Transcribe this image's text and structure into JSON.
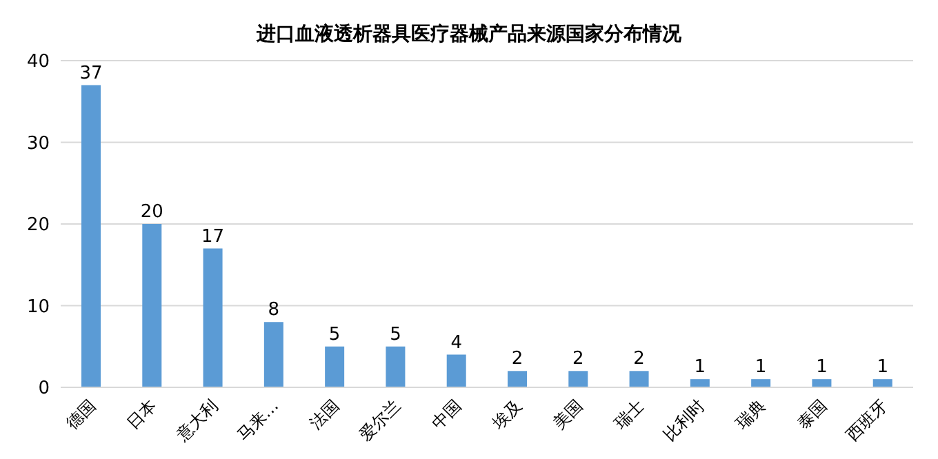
{
  "chart_data": {
    "type": "bar",
    "title": "进口血液透析器具医疗器械产品来源国家分布情况",
    "categories": [
      "德国",
      "日本",
      "意大利",
      "马来…",
      "法国",
      "爱尔兰",
      "中国",
      "埃及",
      "美国",
      "瑞士",
      "比利时",
      "瑞典",
      "泰国",
      "西班牙"
    ],
    "values": [
      37,
      20,
      17,
      8,
      5,
      5,
      4,
      2,
      2,
      2,
      1,
      1,
      1,
      1
    ],
    "color": "#5b9bd5",
    "ylim": [
      0,
      40
    ],
    "yticks": [
      0,
      10,
      20,
      30,
      40
    ],
    "grid": "y",
    "data_labels": true
  }
}
